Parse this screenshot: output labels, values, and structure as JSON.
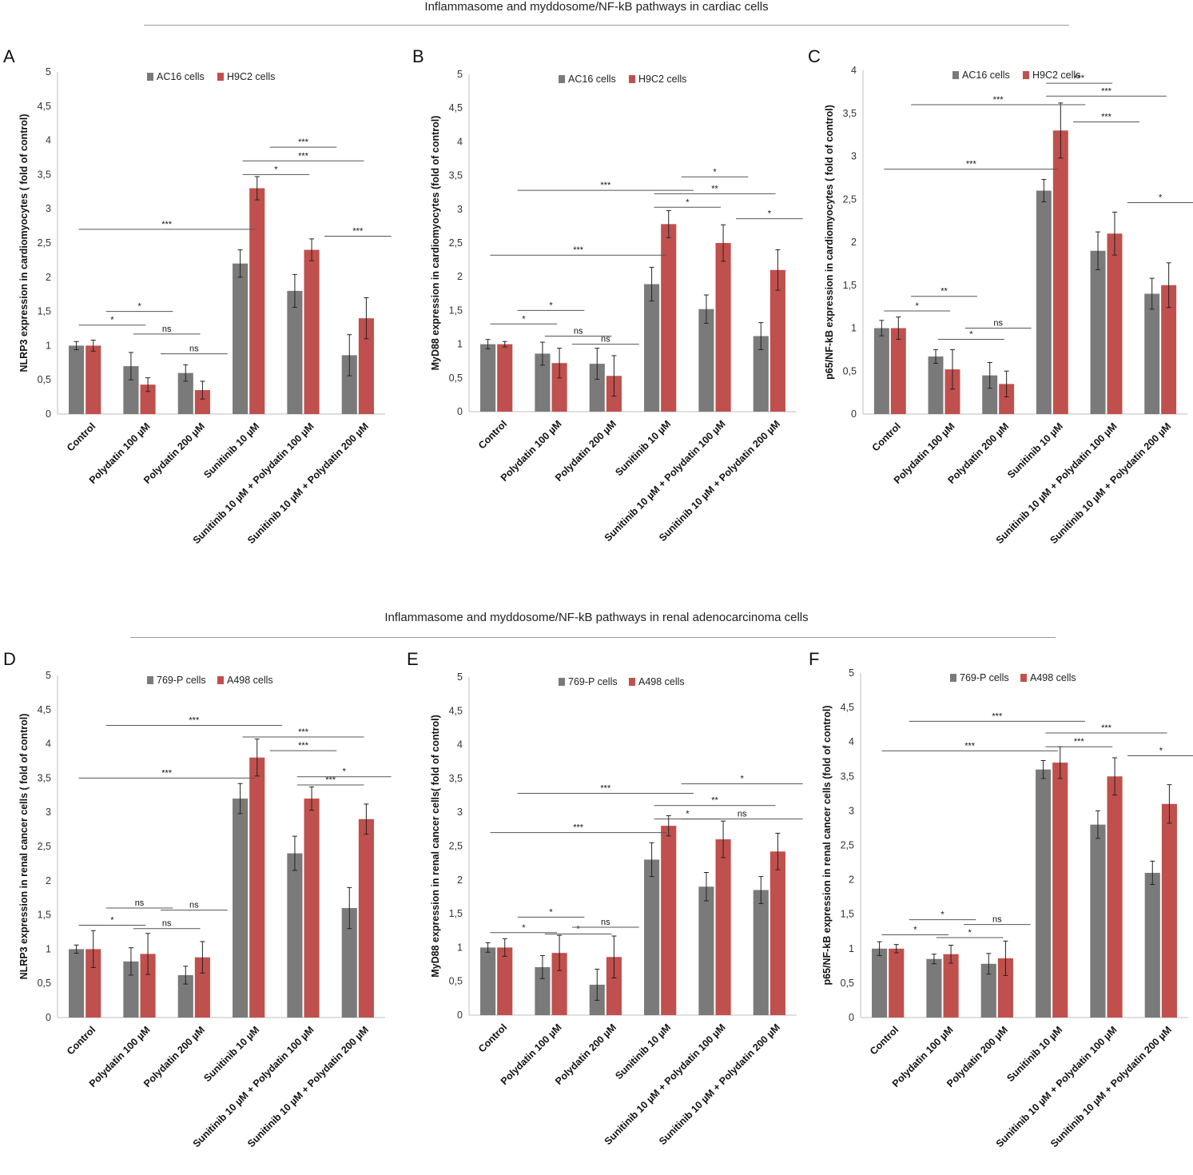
{
  "sections": [
    {
      "title": "Inflammasome and myddosome/NF-kB pathways in cardiac cells"
    },
    {
      "title": "Inflammasome and myddosome/NF-kB pathways in renal adenocarcinoma cells"
    }
  ],
  "colors": {
    "gray": "#7a7a7a",
    "red": "#c0504d"
  },
  "chart_data": [
    {
      "panel": "A",
      "type": "bar",
      "ylabel": "NLRP3 expression in cardiomyocytes ( fold of control)",
      "ylim": [
        0,
        5
      ],
      "yticks": [
        "0",
        "0,5",
        "1",
        "1,5",
        "2",
        "2,5",
        "3",
        "3,5",
        "4",
        "4,5",
        "5"
      ],
      "categories": [
        "Control",
        "Polydatin 100 µM",
        "Polydatin 200 µM",
        "Sunitinib 10 µM",
        "Sunitinib 10 µM + Polydatin 100 µM",
        "Sunitinib 10 µM + Polydatin 200 µM"
      ],
      "series": [
        {
          "name": "AC16 cells",
          "values": [
            1.0,
            0.7,
            0.6,
            2.2,
            1.8,
            0.86
          ],
          "errors": [
            0.06,
            0.2,
            0.12,
            0.2,
            0.24,
            0.3
          ]
        },
        {
          "name": "H9C2 cells",
          "values": [
            1.0,
            0.43,
            0.35,
            3.3,
            2.4,
            1.4
          ],
          "errors": [
            0.08,
            0.1,
            0.13,
            0.17,
            0.16,
            0.3
          ]
        }
      ],
      "significance": [
        {
          "label": "*",
          "x1": 0,
          "x2": 1,
          "y": 1.3
        },
        {
          "label": "*",
          "x1": 0.5,
          "x2": 1.5,
          "y": 1.5
        },
        {
          "label": "ns",
          "x1": 1,
          "x2": 2,
          "y": 1.17
        },
        {
          "label": "ns",
          "x1": 1.5,
          "x2": 2.5,
          "y": 0.88
        },
        {
          "label": "***",
          "x1": 0,
          "x2": 3,
          "y": 2.7
        },
        {
          "label": "*",
          "x1": 3,
          "x2": 4,
          "y": 3.5
        },
        {
          "label": "***",
          "x1": 3,
          "x2": 5,
          "y": 3.7
        },
        {
          "label": "***",
          "x1": 3.5,
          "x2": 4.5,
          "y": 3.9
        },
        {
          "label": "***",
          "x1": 4.5,
          "x2": 5.5,
          "y": 2.6
        }
      ]
    },
    {
      "panel": "B",
      "type": "bar",
      "ylabel": "MyD88 expression in cardiomyocytes  (fold of control)",
      "ylim": [
        0,
        5
      ],
      "yticks": [
        "0",
        "0,5",
        "1",
        "1,5",
        "2",
        "2,5",
        "3",
        "3,5",
        "4",
        "4,5",
        "5"
      ],
      "categories": [
        "Control",
        "Polydatin 100 µM",
        "Polydatin 200 µM",
        "Sunitinib 10 µM",
        "Sunitinib 10 µM + Polydatin 100 µM",
        "Sunitinib 10 µM + Polydatin 200 µM"
      ],
      "series": [
        {
          "name": "AC16 cells",
          "values": [
            1.0,
            0.86,
            0.71,
            1.89,
            1.52,
            1.12
          ],
          "errors": [
            0.07,
            0.17,
            0.23,
            0.25,
            0.21,
            0.2
          ]
        },
        {
          "name": "H9C2 cells",
          "values": [
            1.0,
            0.72,
            0.53,
            2.78,
            2.5,
            2.1
          ],
          "errors": [
            0.04,
            0.22,
            0.3,
            0.2,
            0.27,
            0.3
          ]
        }
      ],
      "significance": [
        {
          "label": "*",
          "x1": 0,
          "x2": 1,
          "y": 1.3
        },
        {
          "label": "*",
          "x1": 0.5,
          "x2": 1.5,
          "y": 1.5
        },
        {
          "label": "ns",
          "x1": 1,
          "x2": 2,
          "y": 1.12
        },
        {
          "label": "ns",
          "x1": 1.5,
          "x2": 2.5,
          "y": 1.0
        },
        {
          "label": "***",
          "x1": 0,
          "x2": 3,
          "y": 2.32
        },
        {
          "label": "***",
          "x1": 0.5,
          "x2": 3.5,
          "y": 3.28
        },
        {
          "label": "*",
          "x1": 3,
          "x2": 4,
          "y": 3.03
        },
        {
          "label": "**",
          "x1": 3,
          "x2": 5,
          "y": 3.23
        },
        {
          "label": "*",
          "x1": 3.5,
          "x2": 4.5,
          "y": 3.48
        },
        {
          "label": "*",
          "x1": 4.5,
          "x2": 5.5,
          "y": 2.86
        }
      ]
    },
    {
      "panel": "C",
      "type": "bar",
      "ylabel": "p65/NF-kB expression in cardiomyocytes  ( fold of control)",
      "ylim": [
        0,
        4
      ],
      "yticks": [
        "0",
        "0,5",
        "1",
        "1,5",
        "2",
        "2,5",
        "3",
        "3,5",
        "4"
      ],
      "categories": [
        "Control",
        "Polydatin 100 µM",
        "Polydatin 200 µM",
        "Sunitinib 10 µM",
        "Sunitinib 10 µM + Polydatin 100 µM",
        "Sunitinib 10 µM + Polydatin 200 µM"
      ],
      "series": [
        {
          "name": "AC16 cells",
          "values": [
            1.0,
            0.67,
            0.45,
            2.6,
            1.9,
            1.4
          ],
          "errors": [
            0.09,
            0.08,
            0.15,
            0.13,
            0.22,
            0.18
          ]
        },
        {
          "name": "H9C2 cells",
          "values": [
            1.0,
            0.52,
            0.35,
            3.3,
            2.1,
            1.5
          ],
          "errors": [
            0.13,
            0.23,
            0.15,
            0.32,
            0.25,
            0.26
          ]
        }
      ],
      "significance": [
        {
          "label": "*",
          "x1": 0,
          "x2": 1,
          "y": 1.2
        },
        {
          "label": "**",
          "x1": 0.5,
          "x2": 1.5,
          "y": 1.37
        },
        {
          "label": "*",
          "x1": 1,
          "x2": 2,
          "y": 0.87
        },
        {
          "label": "ns",
          "x1": 1.5,
          "x2": 2.5,
          "y": 1.0
        },
        {
          "label": "***",
          "x1": 0,
          "x2": 3,
          "y": 2.85
        },
        {
          "label": "***",
          "x1": 0.5,
          "x2": 3.5,
          "y": 3.6
        },
        {
          "label": "***",
          "x1": 3,
          "x2": 4,
          "y": 3.85
        },
        {
          "label": "***",
          "x1": 3,
          "x2": 5,
          "y": 3.7
        },
        {
          "label": "***",
          "x1": 3.5,
          "x2": 4.5,
          "y": 3.4
        },
        {
          "label": "*",
          "x1": 4.5,
          "x2": 5.5,
          "y": 2.46
        }
      ]
    },
    {
      "panel": "D",
      "type": "bar",
      "ylabel": "NLRP3 expression in renal cancer cells ( fold of control)",
      "ylim": [
        0,
        5
      ],
      "yticks": [
        "0",
        "0,5",
        "1",
        "1,5",
        "2",
        "2,5",
        "3",
        "3,5",
        "4",
        "4,5",
        "5"
      ],
      "categories": [
        "Control",
        "Polydatin 100 µM",
        "Polydatin 200 µM",
        "Sunitinib 10 µM",
        "Sunitinib 10 µM + Polydatin 100 µM",
        "Sunitinib 10 µM + Polydatin 200 µM"
      ],
      "series": [
        {
          "name": "769-P cells",
          "values": [
            1.0,
            0.82,
            0.62,
            3.2,
            2.4,
            1.6
          ],
          "errors": [
            0.06,
            0.2,
            0.13,
            0.22,
            0.25,
            0.3
          ]
        },
        {
          "name": "A498 cells",
          "values": [
            1.0,
            0.93,
            0.88,
            3.8,
            3.2,
            2.9
          ],
          "errors": [
            0.27,
            0.3,
            0.23,
            0.27,
            0.17,
            0.22
          ]
        }
      ],
      "significance": [
        {
          "label": "*",
          "x1": 0,
          "x2": 1,
          "y": 1.35
        },
        {
          "label": "ns",
          "x1": 0.5,
          "x2": 1.5,
          "y": 1.6
        },
        {
          "label": "ns",
          "x1": 1,
          "x2": 2,
          "y": 1.3
        },
        {
          "label": "ns",
          "x1": 1.5,
          "x2": 2.5,
          "y": 1.57
        },
        {
          "label": "***",
          "x1": 0,
          "x2": 3,
          "y": 3.5
        },
        {
          "label": "***",
          "x1": 0.5,
          "x2": 3.5,
          "y": 4.27
        },
        {
          "label": "***",
          "x1": 3,
          "x2": 5,
          "y": 4.1
        },
        {
          "label": "***",
          "x1": 3.5,
          "x2": 4.5,
          "y": 3.9
        },
        {
          "label": "***",
          "x1": 4,
          "x2": 5,
          "y": 3.4
        },
        {
          "label": "*",
          "x1": 4,
          "x2": 5.5,
          "y": 3.52
        }
      ]
    },
    {
      "panel": "E",
      "type": "bar",
      "ylabel": "MyD88 expression in renal cancer cells( fold of control)",
      "ylim": [
        0,
        5
      ],
      "yticks": [
        "0",
        "0,5",
        "1",
        "1,5",
        "2",
        "2,5",
        "3",
        "3,5",
        "4",
        "4,5",
        "5"
      ],
      "categories": [
        "Control",
        "Polydatin 100 µM",
        "Polydatin 200 µM",
        "Sunitinib 10 µM",
        "Sunitinib 10 µM + Polydatin 100 µM",
        "Sunitinib 10 µM + Polydatin 200 µM"
      ],
      "series": [
        {
          "name": "769-P cells",
          "values": [
            1.0,
            0.71,
            0.45,
            2.3,
            1.9,
            1.85
          ],
          "errors": [
            0.07,
            0.17,
            0.23,
            0.25,
            0.21,
            0.2
          ]
        },
        {
          "name": "A498 cells",
          "values": [
            1.0,
            0.92,
            0.86,
            2.8,
            2.6,
            2.42
          ],
          "errors": [
            0.13,
            0.26,
            0.31,
            0.15,
            0.27,
            0.27
          ]
        }
      ],
      "significance": [
        {
          "label": "*",
          "x1": 0,
          "x2": 1,
          "y": 1.22
        },
        {
          "label": "*",
          "x1": 0.5,
          "x2": 1.5,
          "y": 1.45
        },
        {
          "label": "*",
          "x1": 1,
          "x2": 2,
          "y": 1.2
        },
        {
          "label": "ns",
          "x1": 1.5,
          "x2": 2.5,
          "y": 1.3
        },
        {
          "label": "***",
          "x1": 0,
          "x2": 3,
          "y": 2.7
        },
        {
          "label": "***",
          "x1": 0.5,
          "x2": 3.5,
          "y": 3.28
        },
        {
          "label": "*",
          "x1": 3,
          "x2": 4,
          "y": 2.9
        },
        {
          "label": "**",
          "x1": 3,
          "x2": 5,
          "y": 3.1
        },
        {
          "label": "ns",
          "x1": 3.5,
          "x2": 5.5,
          "y": 2.9
        },
        {
          "label": "*",
          "x1": 3.5,
          "x2": 5.5,
          "y": 3.42
        }
      ]
    },
    {
      "panel": "F",
      "type": "bar",
      "ylabel": "p65/NF-kB expression in renal cancer cells (fold of control)",
      "ylim": [
        0,
        5
      ],
      "yticks": [
        "0",
        "0,5",
        "1",
        "1,5",
        "2",
        "2,5",
        "3",
        "3,5",
        "4",
        "4,5",
        "5"
      ],
      "categories": [
        "Control",
        "Polydatin 100 µM",
        "Polydatin 200 µM",
        "Sunitinib 10 µM",
        "Sunitinib 10 µM + Polydatin 100 µM",
        "Sunitinib 10 µM + Polydatin 200 µM"
      ],
      "series": [
        {
          "name": "769-P cells",
          "values": [
            1.0,
            0.85,
            0.78,
            3.6,
            2.8,
            2.1
          ],
          "errors": [
            0.1,
            0.07,
            0.15,
            0.13,
            0.2,
            0.17
          ]
        },
        {
          "name": "A498 cells",
          "values": [
            1.0,
            0.92,
            0.86,
            3.7,
            3.5,
            3.1
          ],
          "errors": [
            0.06,
            0.13,
            0.25,
            0.23,
            0.27,
            0.28
          ]
        }
      ],
      "significance": [
        {
          "label": "*",
          "x1": 0,
          "x2": 1,
          "y": 1.2
        },
        {
          "label": "*",
          "x1": 0.5,
          "x2": 1.5,
          "y": 1.42
        },
        {
          "label": "*",
          "x1": 1,
          "x2": 2,
          "y": 1.16
        },
        {
          "label": "ns",
          "x1": 1.5,
          "x2": 2.5,
          "y": 1.35
        },
        {
          "label": "***",
          "x1": 0,
          "x2": 3,
          "y": 3.87
        },
        {
          "label": "***",
          "x1": 0.5,
          "x2": 3.5,
          "y": 4.3
        },
        {
          "label": "***",
          "x1": 3,
          "x2": 4,
          "y": 3.93
        },
        {
          "label": "***",
          "x1": 3,
          "x2": 5,
          "y": 4.13
        },
        {
          "label": "*",
          "x1": 4.5,
          "x2": 5.5,
          "y": 3.8
        }
      ]
    }
  ]
}
